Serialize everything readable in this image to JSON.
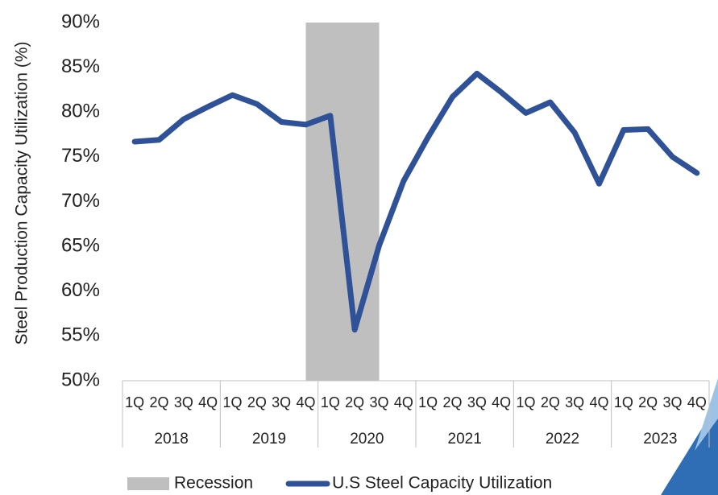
{
  "chart_data": {
    "type": "line",
    "y_label": "Steel Production Capacity Utilization (%)",
    "categories": [
      "1Q",
      "2Q",
      "3Q",
      "4Q",
      "1Q",
      "2Q",
      "3Q",
      "4Q",
      "1Q",
      "2Q",
      "3Q",
      "4Q",
      "1Q",
      "2Q",
      "3Q",
      "4Q",
      "1Q",
      "2Q",
      "3Q",
      "4Q",
      "1Q",
      "2Q",
      "3Q",
      "4Q"
    ],
    "category_groups": [
      "2018",
      "2019",
      "2020",
      "2021",
      "2022",
      "2023"
    ],
    "series": [
      {
        "name": "Recession",
        "type": "area",
        "color": "#bfbfbf",
        "values": [
          null,
          null,
          null,
          null,
          null,
          null,
          null,
          90,
          90,
          90,
          90,
          null,
          null,
          null,
          null,
          null,
          null,
          null,
          null,
          null,
          null,
          null,
          null,
          null
        ]
      },
      {
        "name": "U.S Steel Capacity Utilization",
        "type": "line",
        "color": "#2f5197",
        "values": [
          76.7,
          76.9,
          79.2,
          80.6,
          81.9,
          80.9,
          78.9,
          78.6,
          79.6,
          55.7,
          65.1,
          72.3,
          77.2,
          81.7,
          84.3,
          82.2,
          79.9,
          81.1,
          77.7,
          72.0,
          78.0,
          78.1,
          75.0,
          73.2
        ]
      }
    ],
    "ylim": [
      50,
      90
    ],
    "yticks": [
      {
        "value": 50,
        "label": "50%"
      },
      {
        "value": 55,
        "label": "55%"
      },
      {
        "value": 60,
        "label": "60%"
      },
      {
        "value": 65,
        "label": "65%"
      },
      {
        "value": 70,
        "label": "70%"
      },
      {
        "value": 75,
        "label": "75%"
      },
      {
        "value": 80,
        "label": "80%"
      },
      {
        "value": 85,
        "label": "85%"
      },
      {
        "value": 90,
        "label": "90%"
      }
    ],
    "grid": false,
    "legend": "bottom"
  }
}
